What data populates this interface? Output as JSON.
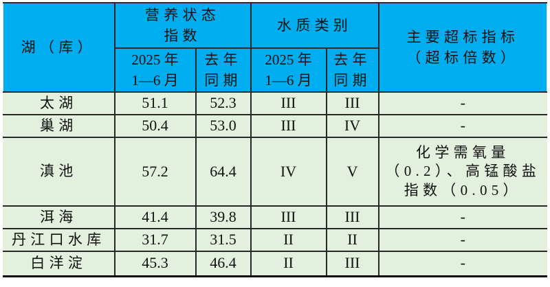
{
  "colors": {
    "header_bg": "#00AEEF",
    "body_bg": "#E3F0DE",
    "border": "#262626",
    "text": "#111111"
  },
  "table": {
    "header": {
      "lake": "湖（库）",
      "group_nutrition": "营养状态\n指数",
      "group_water_quality": "水质类别",
      "exceed": "主要超标指标\n（超标倍数）",
      "sub_period_current": "2025 年\n1—6 月",
      "sub_period_previous": "去年\n同期"
    },
    "rows": [
      {
        "lake": "太湖",
        "tsi_current": "51.1",
        "tsi_previous": "52.3",
        "wq_current": "III",
        "wq_previous": "III",
        "exceed": "-"
      },
      {
        "lake": "巢湖",
        "tsi_current": "50.4",
        "tsi_previous": "53.0",
        "wq_current": "III",
        "wq_previous": "IV",
        "exceed": "-"
      },
      {
        "lake": "滇池",
        "tsi_current": "57.2",
        "tsi_previous": "64.4",
        "wq_current": "IV",
        "wq_previous": "V",
        "exceed": "化学需氧量\n（0.2）、高锰酸盐\n指数（0.05）"
      },
      {
        "lake": "洱海",
        "tsi_current": "41.4",
        "tsi_previous": "39.8",
        "wq_current": "III",
        "wq_previous": "III",
        "exceed": "-"
      },
      {
        "lake": "丹江口水库",
        "tsi_current": "31.7",
        "tsi_previous": "31.5",
        "wq_current": "II",
        "wq_previous": "II",
        "exceed": "-"
      },
      {
        "lake": "白洋淀",
        "tsi_current": "45.3",
        "tsi_previous": "46.4",
        "wq_current": "II",
        "wq_previous": "III",
        "exceed": "-"
      }
    ]
  }
}
